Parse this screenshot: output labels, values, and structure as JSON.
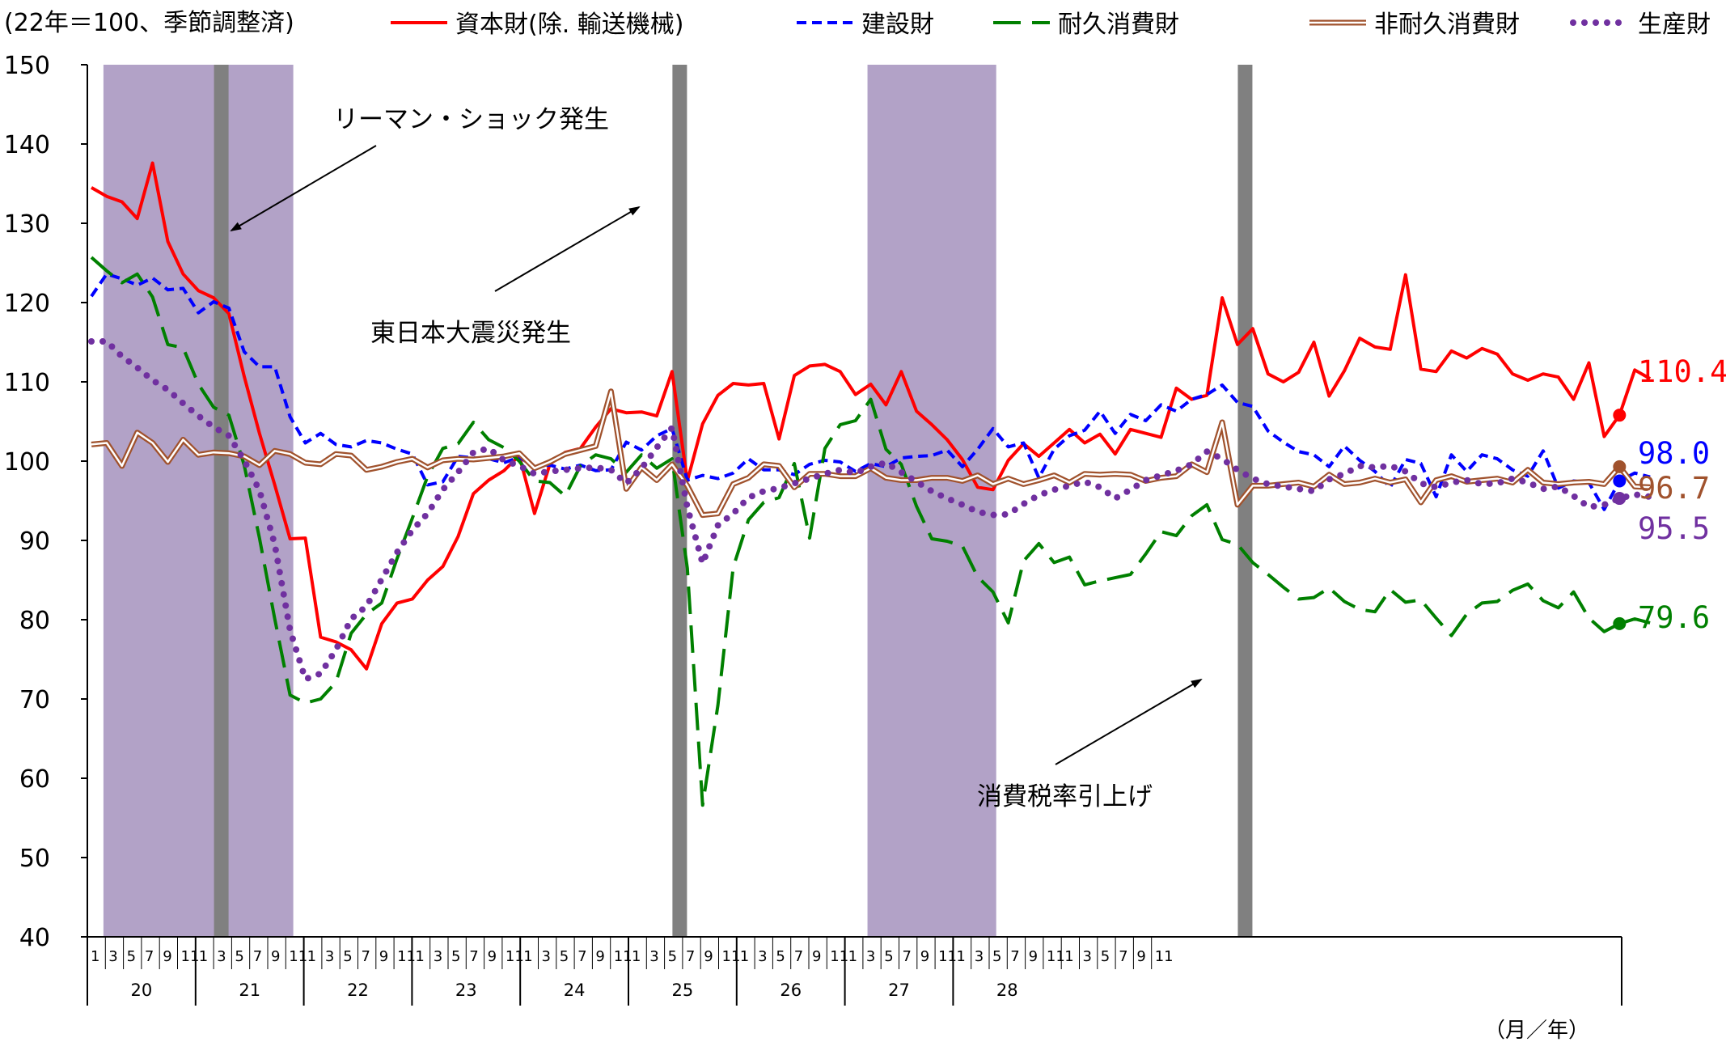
{
  "chart_data": {
    "type": "line",
    "unit_note": "(22年＝100、季節調整済)",
    "x_unit_label": "（月／年）",
    "y_ticks": [
      150,
      140,
      130,
      120,
      110,
      100,
      90,
      80,
      70,
      60,
      50,
      40
    ],
    "ylim": [
      40,
      150
    ],
    "year_labels": [
      "20",
      "21",
      "22",
      "23",
      "24",
      "25",
      "26",
      "27",
      "28"
    ],
    "month_labels": [
      "1",
      "3",
      "5",
      "7",
      "9",
      "11"
    ],
    "n_points": 101,
    "shaded_ranges": [
      [
        1,
        13
      ],
      [
        8,
        9
      ],
      [
        51,
        59
      ]
    ],
    "event_lines": [
      8.5,
      38.5,
      75.5
    ],
    "annotations": [
      {
        "text": "リーマン・ショック発生"
      },
      {
        "text": "東日本大震災発生"
      },
      {
        "text": "消費税率引上げ"
      }
    ],
    "series": [
      {
        "name": "資本財(除.輸送機械)",
        "legend_text": "資本財(除. 輸送機械)",
        "color": "#ff0000",
        "style": "solid",
        "end_label": "110.4",
        "values": [
          134.5,
          133.4,
          132.7,
          130.6,
          137.6,
          127.7,
          123.6,
          121.5,
          120.6,
          118.6,
          110.7,
          103.5,
          97,
          90.2,
          90.3,
          77.8,
          77.2,
          76.2,
          73.8,
          79.5,
          82.1,
          82.6,
          85,
          86.7,
          90.5,
          95.9,
          97.6,
          98.8,
          100.7,
          93.4,
          99.6,
          101.1,
          101.6,
          104.3,
          106.6,
          106.1,
          106.2,
          105.7,
          111.3,
          97.5,
          104.7,
          108.3,
          109.8,
          109.6,
          109.8,
          102.8,
          110.8,
          112,
          112.2,
          111.3,
          108.4,
          109.7,
          107.1,
          111.3,
          106.3,
          104.6,
          102.7,
          100.2,
          96.7,
          96.4,
          100.1,
          102.2,
          100.6,
          102.3,
          104,
          102.3,
          103.4,
          100.9,
          104,
          103.5,
          103,
          109.2,
          107.8,
          108.3,
          120.6,
          114.7,
          116.7,
          111,
          110,
          111.2,
          115,
          108.2,
          111.4,
          115.5,
          114.4,
          114.1,
          123.5,
          111.6,
          111.3,
          113.9,
          113,
          114.2,
          113.5,
          111,
          110.2,
          111,
          110.6,
          107.8,
          112.4,
          103.1,
          105.8,
          111.5,
          110.4
        ]
      },
      {
        "name": "建設財",
        "legend_text": "建設財",
        "color": "#0000ff",
        "style": "dashed",
        "end_label": "98.0",
        "values": [
          120.8,
          123.6,
          123,
          122.2,
          123.1,
          121.6,
          121.8,
          118.7,
          120.1,
          119.3,
          113.8,
          111.9,
          111.9,
          105.6,
          102.3,
          103.5,
          102.1,
          101.8,
          102.6,
          102.3,
          101.5,
          100.9,
          97,
          97.4,
          100.6,
          100.4,
          100.3,
          99.8,
          100.5,
          99.3,
          99.5,
          99,
          99.5,
          98.8,
          98.9,
          102.4,
          101.4,
          103.2,
          104.1,
          97.6,
          98.2,
          97.8,
          98.5,
          100.3,
          98.9,
          98.9,
          98.3,
          99.6,
          100.1,
          99.9,
          98.7,
          99.7,
          99.3,
          100.4,
          100.6,
          100.7,
          101.4,
          99.3,
          101.5,
          104.1,
          101.8,
          102.3,
          97.9,
          101.5,
          103.2,
          103.9,
          106.3,
          103.5,
          105.9,
          105.1,
          107.1,
          106.3,
          107.8,
          108.4,
          109.6,
          107.4,
          106.9,
          103.8,
          102.4,
          101.2,
          100.8,
          99.3,
          101.9,
          100.1,
          98.7,
          96.7,
          100.2,
          99.7,
          95.5,
          100.8,
          98.7,
          100.8,
          100.3,
          98.9,
          98.1,
          101.3,
          96.6,
          97.5,
          97.3,
          93.9,
          97.5,
          98.5,
          98
        ]
      },
      {
        "name": "耐久消費財",
        "legend_text": "耐久消費財",
        "color": "#008000",
        "style": "longdash",
        "end_label": "79.6",
        "values": [
          125.7,
          124,
          122.5,
          123.6,
          120.7,
          114.7,
          114.3,
          109.7,
          106.8,
          105.8,
          99.5,
          90.3,
          80.1,
          70.5,
          69.5,
          70,
          72.1,
          78.3,
          80.7,
          82.1,
          87.7,
          92.8,
          98.1,
          101.6,
          102.2,
          104.9,
          102.7,
          101.7,
          100,
          97.5,
          97.3,
          95.6,
          99.4,
          100.8,
          100.3,
          98.6,
          100.8,
          99.1,
          100.3,
          86.5,
          56.6,
          69.2,
          86.6,
          92.6,
          94.8,
          95.4,
          99.7,
          90.3,
          101.6,
          104.6,
          105.1,
          107.8,
          101.5,
          99.6,
          94.3,
          90.2,
          89.9,
          89.3,
          85.4,
          83.5,
          79.6,
          87.4,
          89.6,
          87.2,
          87.9,
          84.4,
          84.9,
          85.3,
          85.7,
          88.3,
          91.1,
          90.6,
          93.1,
          94.5,
          90.1,
          89.5,
          87.2,
          85.7,
          84.1,
          82.6,
          82.8,
          84,
          82.3,
          81.3,
          81,
          83.8,
          82.2,
          82.5,
          80.2,
          78,
          80.7,
          82.1,
          82.3,
          83.7,
          84.5,
          82.4,
          81.5,
          83.5,
          80.2,
          78.5,
          79.5,
          80.1,
          79.6
        ]
      },
      {
        "name": "非耐久消費財",
        "legend_text": "非耐久消費財",
        "color": "#a0522d",
        "style": "double",
        "end_label": "96.7",
        "values": [
          102.1,
          102.3,
          99.4,
          103.6,
          102.3,
          99.9,
          102.7,
          100.8,
          101.1,
          101,
          100.6,
          99.5,
          101.3,
          100.9,
          99.8,
          99.6,
          100.9,
          100.7,
          98.9,
          99.3,
          99.9,
          100.3,
          99.2,
          100.1,
          100.3,
          100.2,
          100.4,
          100.6,
          101,
          99.1,
          99.9,
          100.9,
          101.4,
          101.9,
          108.8,
          96.5,
          99.2,
          97.6,
          99.6,
          96.9,
          93.2,
          93.4,
          97.1,
          97.9,
          99.6,
          99.4,
          96.7,
          98.4,
          98.4,
          98.1,
          98.1,
          99.1,
          97.9,
          97.6,
          97.6,
          97.9,
          97.9,
          97.5,
          98.2,
          97.1,
          97.8,
          97.1,
          97.6,
          98.2,
          97.3,
          98.4,
          98.3,
          98.4,
          98.3,
          97.5,
          97.9,
          98.1,
          99.6,
          98.6,
          104.9,
          94.5,
          96.9,
          96.9,
          97.1,
          97.3,
          96.8,
          98.3,
          97.1,
          97.3,
          97.8,
          97.3,
          97.7,
          94.8,
          97.6,
          98.1,
          97.4,
          97.6,
          97.8,
          97.3,
          98.9,
          97.3,
          97.1,
          97.3,
          97.4,
          97.1,
          99.3,
          96.8,
          96.7
        ]
      },
      {
        "name": "生産財",
        "legend_text": "生産財",
        "color": "#7030a0",
        "style": "dotted",
        "end_label": "95.5",
        "values": [
          115.1,
          115.1,
          113.2,
          111.8,
          110.2,
          109,
          107.3,
          105.7,
          104.3,
          103.2,
          100.1,
          96.3,
          89.5,
          78.7,
          72.5,
          73.2,
          76.2,
          80.1,
          81.7,
          85.1,
          88.5,
          91.3,
          93.4,
          96.4,
          98.6,
          101.1,
          101.6,
          100.1,
          99.4,
          98.4,
          98.7,
          98.9,
          99.1,
          99.2,
          98.9,
          97.2,
          99.1,
          101.7,
          104.2,
          94.2,
          87.1,
          91.9,
          93.4,
          95.4,
          96.2,
          96.6,
          97.2,
          97.8,
          98.4,
          98.9,
          98.5,
          99.3,
          99.8,
          98.6,
          97.4,
          96.2,
          95.3,
          94.5,
          93.6,
          93.2,
          93.3,
          94.6,
          95.7,
          96.4,
          96.9,
          97.4,
          96.7,
          95.3,
          96.4,
          97.6,
          98.2,
          98.8,
          99.6,
          101.2,
          100.3,
          98.9,
          97.8,
          97.1,
          96.8,
          96.5,
          96.2,
          97.7,
          98.4,
          99.4,
          99.2,
          99.4,
          98.7,
          97.2,
          96.7,
          97.3,
          97.6,
          97.1,
          97.2,
          97.8,
          97.3,
          96.5,
          96.8,
          95.6,
          94.2,
          94.5,
          95.3,
          95.8,
          95.5
        ]
      }
    ]
  }
}
